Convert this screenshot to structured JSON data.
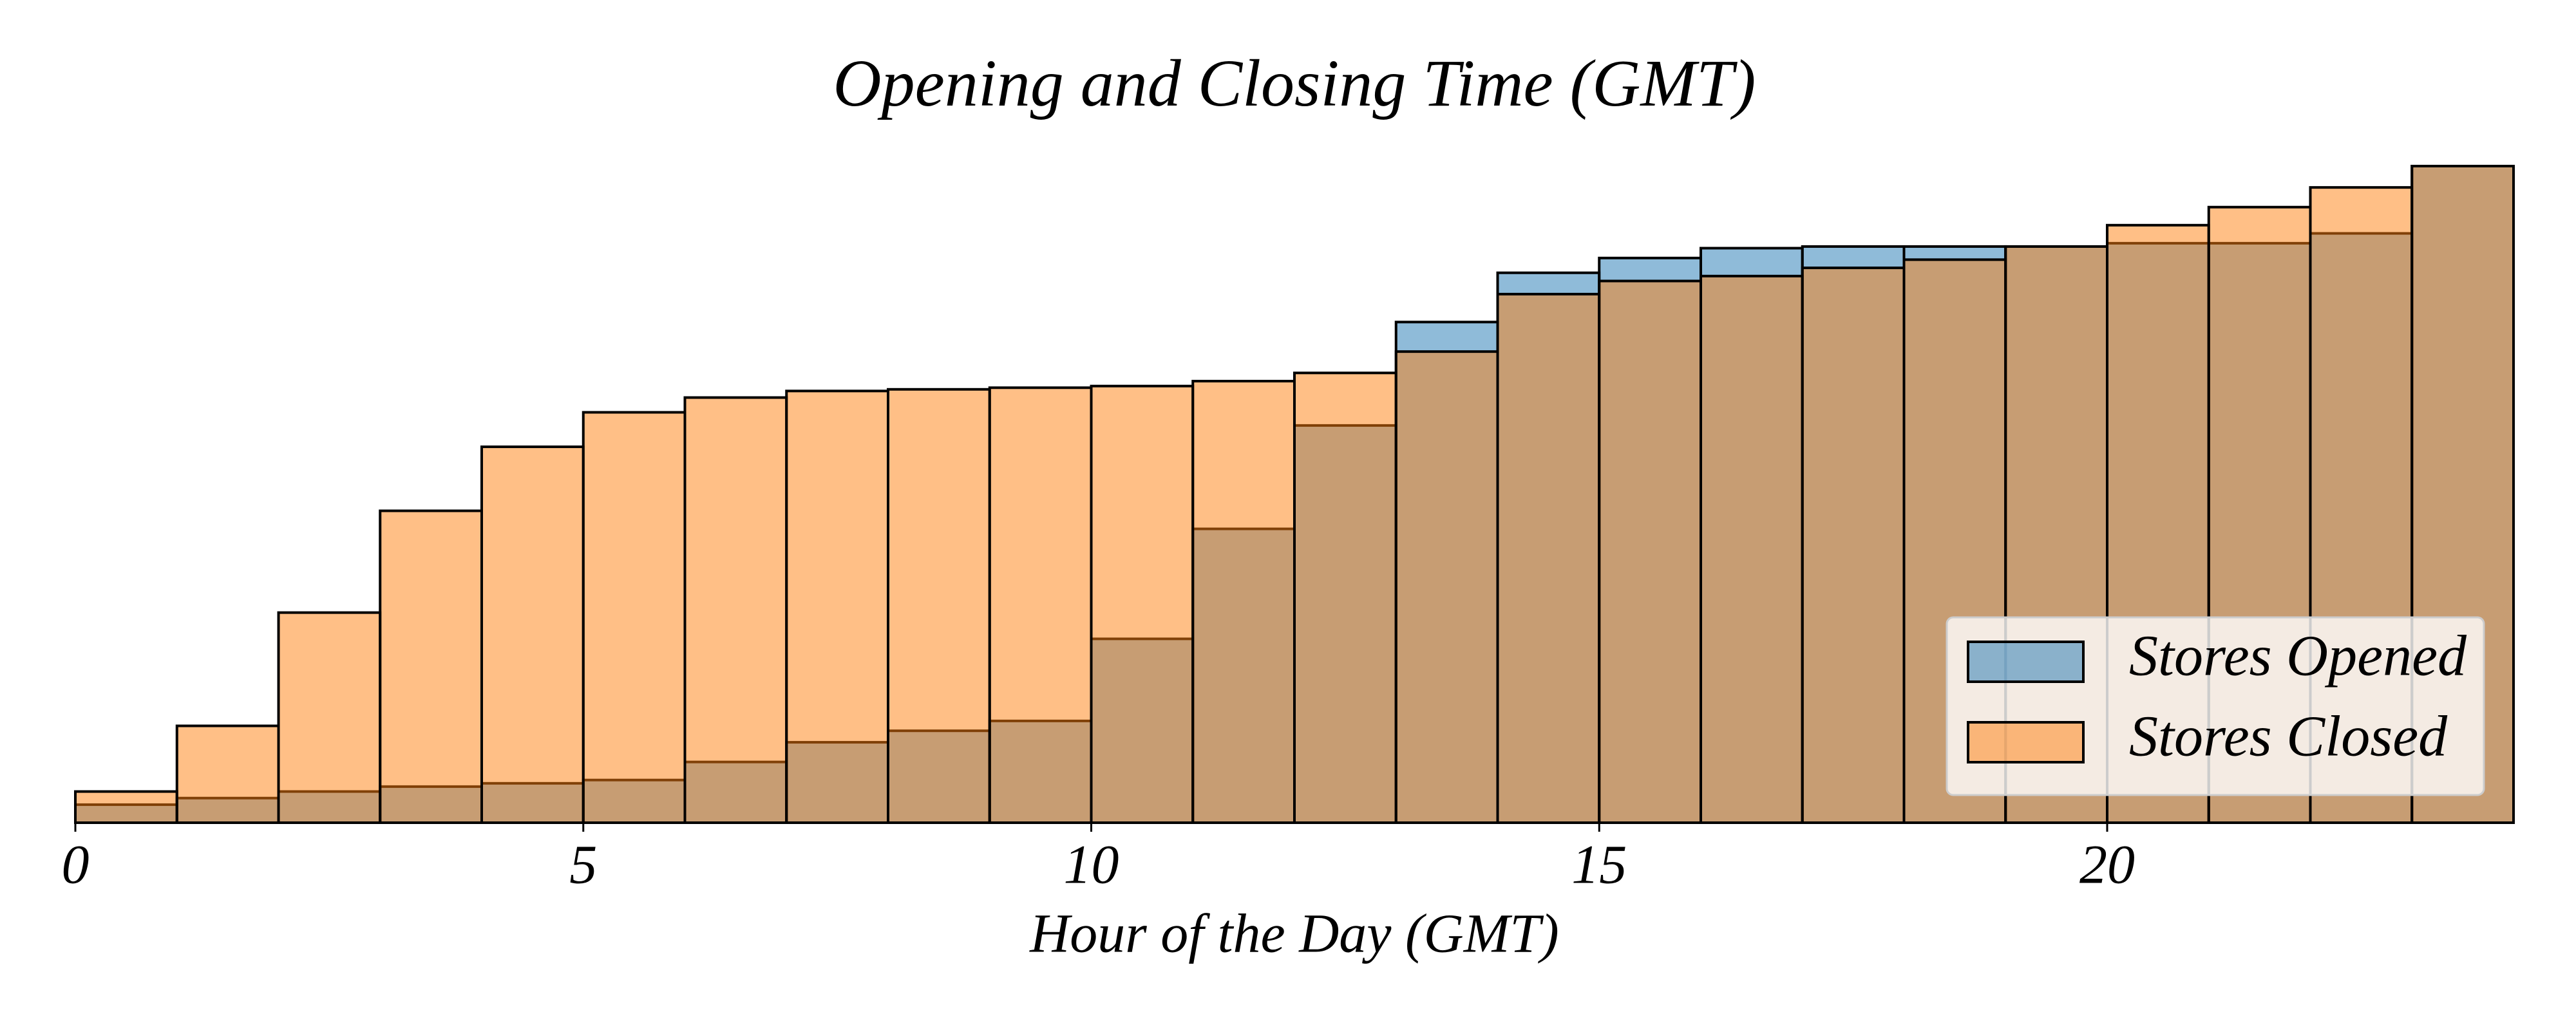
{
  "chart_data": {
    "type": "histogram",
    "title": "Opening and Closing Time (GMT)",
    "xlabel": "Hour of the Day (GMT)",
    "bins": [
      0,
      1,
      2,
      3,
      4,
      5,
      6,
      7,
      8,
      9,
      10,
      11,
      12,
      13,
      14,
      15,
      16,
      17,
      18,
      19,
      20,
      21,
      22,
      23,
      24
    ],
    "series": [
      {
        "name": "Stores Opened",
        "color": "#1f77b4",
        "values": [
          2.75,
          3.75,
          4.75,
          5.5,
          6,
          6.5,
          9.25,
          12.25,
          14,
          15.5,
          28,
          44.75,
          60.5,
          76.25,
          83.75,
          86,
          87.5,
          87.75,
          87.75,
          87.75,
          88.25,
          88.25,
          89.75,
          100
        ]
      },
      {
        "name": "Stores Closed",
        "color": "#ff7f0e",
        "values": [
          4.75,
          14.75,
          32,
          47.5,
          57.25,
          62.5,
          64.75,
          65.75,
          66,
          66.25,
          66.5,
          67.25,
          68.5,
          71.75,
          80.5,
          82.5,
          83.25,
          84.5,
          85.75,
          87.75,
          91,
          93.75,
          96.75,
          100
        ]
      }
    ],
    "xlim": [
      0,
      24
    ],
    "xticks": [
      0,
      5,
      10,
      15,
      20
    ],
    "ylim": [
      0,
      105
    ],
    "legend": "lower right"
  }
}
